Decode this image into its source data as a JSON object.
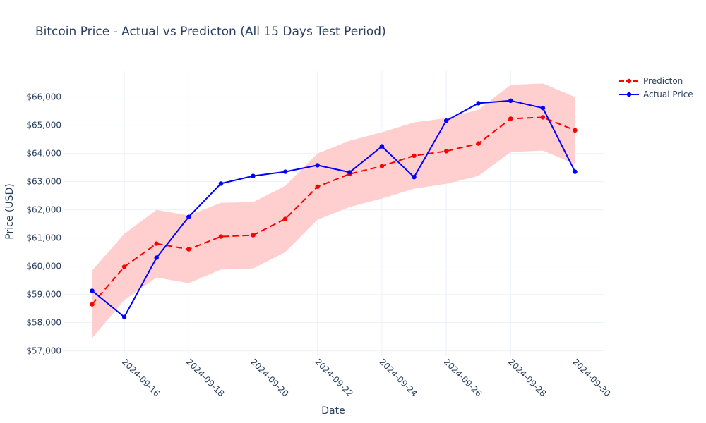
{
  "chart_data": {
    "type": "line",
    "title": "Bitcoin Price - Actual vs Predicton (All 15 Days Test Period)",
    "xlabel": "Date",
    "ylabel": "Price (USD)",
    "x": [
      "2024-09-15",
      "2024-09-16",
      "2024-09-17",
      "2024-09-18",
      "2024-09-19",
      "2024-09-20",
      "2024-09-21",
      "2024-09-22",
      "2024-09-23",
      "2024-09-24",
      "2024-09-25",
      "2024-09-26",
      "2024-09-27",
      "2024-09-28",
      "2024-09-29",
      "2024-09-30"
    ],
    "x_ticks": [
      "2024-09-16",
      "2024-09-18",
      "2024-09-20",
      "2024-09-22",
      "2024-09-24",
      "2024-09-26",
      "2024-09-28",
      "2024-09-30"
    ],
    "ylim": [
      57000,
      67000
    ],
    "y_ticks": [
      {
        "value": 57000,
        "label": "$57,000"
      },
      {
        "value": 58000,
        "label": "$58,000"
      },
      {
        "value": 59000,
        "label": "$59,000"
      },
      {
        "value": 60000,
        "label": "$60,000"
      },
      {
        "value": 61000,
        "label": "$61,000"
      },
      {
        "value": 62000,
        "label": "$62,000"
      },
      {
        "value": 63000,
        "label": "$63,000"
      },
      {
        "value": 64000,
        "label": "$64,000"
      },
      {
        "value": 65000,
        "label": "$65,000"
      },
      {
        "value": 66000,
        "label": "$66,000"
      }
    ],
    "grid": true,
    "legend_position": "top-right",
    "band": {
      "upper": [
        59850,
        61150,
        62000,
        61800,
        62250,
        62270,
        62850,
        64000,
        64450,
        64750,
        65100,
        65250,
        65550,
        66430,
        66480,
        66000
      ],
      "lower": [
        57450,
        58800,
        59600,
        59400,
        59880,
        59920,
        60500,
        61650,
        62100,
        62400,
        62750,
        62920,
        63200,
        64050,
        64100,
        63620
      ],
      "color": "#ffcccc"
    },
    "series": [
      {
        "name": "Predicton",
        "color": "#ff0000",
        "dash": true,
        "values": [
          58650,
          59980,
          60800,
          60600,
          61050,
          61100,
          61680,
          62820,
          63270,
          63550,
          63920,
          64080,
          64350,
          65230,
          65280,
          64820
        ]
      },
      {
        "name": "Actual Price",
        "color": "#0000ff",
        "dash": false,
        "values": [
          59130,
          58200,
          60300,
          61750,
          62930,
          63200,
          63350,
          63580,
          63330,
          64250,
          63160,
          65160,
          65780,
          65870,
          65610,
          63350
        ]
      }
    ]
  }
}
